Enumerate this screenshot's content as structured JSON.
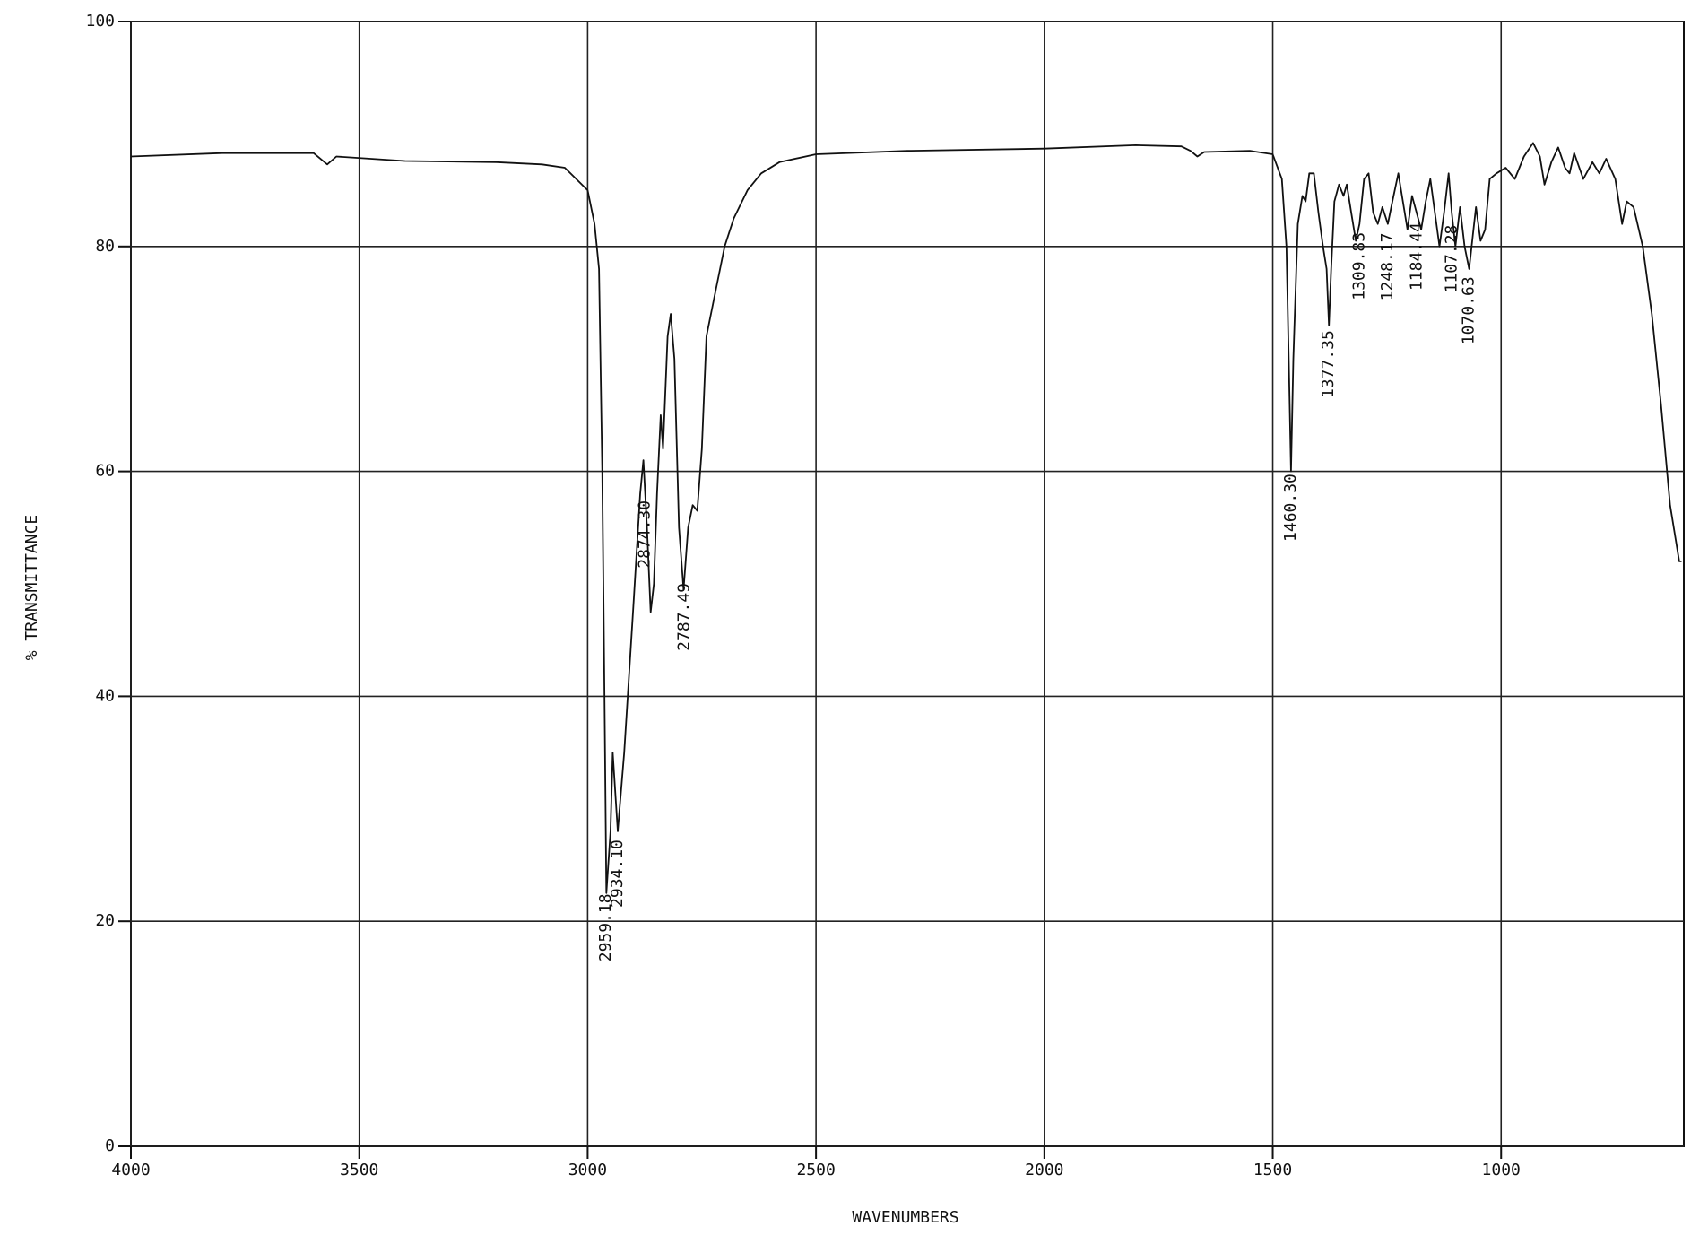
{
  "chart_data": {
    "type": "line",
    "x_label": "WAVENUMBERS",
    "y_label": "% TRANSMITTANCE",
    "xlim": [
      4000,
      600
    ],
    "ylim": [
      0,
      100
    ],
    "xticks": [
      4000,
      3500,
      3000,
      2500,
      2000,
      1500,
      1000
    ],
    "yticks": [
      0,
      20,
      40,
      60,
      80,
      100
    ],
    "grid": true,
    "color": "#111111",
    "x": [
      4000,
      3800,
      3600,
      3570,
      3550,
      3400,
      3200,
      3100,
      3050,
      3000,
      2985,
      2975,
      2968,
      2962,
      2959,
      2950,
      2945,
      2934,
      2920,
      2900,
      2885,
      2878,
      2870,
      2862,
      2855,
      2848,
      2840,
      2835,
      2825,
      2818,
      2810,
      2800,
      2790,
      2780,
      2770,
      2760,
      2750,
      2740,
      2720,
      2700,
      2680,
      2650,
      2620,
      2580,
      2500,
      2300,
      2000,
      1800,
      1700,
      1680,
      1665,
      1650,
      1550,
      1500,
      1480,
      1470,
      1465,
      1460,
      1455,
      1445,
      1435,
      1428,
      1420,
      1410,
      1400,
      1390,
      1382,
      1377,
      1372,
      1365,
      1355,
      1345,
      1338,
      1328,
      1318,
      1310,
      1300,
      1290,
      1280,
      1270,
      1260,
      1248,
      1238,
      1225,
      1215,
      1205,
      1195,
      1185,
      1175,
      1165,
      1155,
      1145,
      1135,
      1125,
      1115,
      1108,
      1100,
      1090,
      1080,
      1070,
      1062,
      1055,
      1045,
      1035,
      1025,
      1010,
      990,
      970,
      950,
      930,
      915,
      905,
      890,
      875,
      860,
      850,
      840,
      820,
      800,
      785,
      770,
      750,
      735,
      725,
      710,
      690,
      670,
      650,
      630,
      610,
      605
    ],
    "values": [
      88,
      88.3,
      88.3,
      87.3,
      88,
      87.6,
      87.5,
      87.3,
      87,
      85,
      82,
      78,
      60,
      35,
      22.5,
      28,
      35,
      28,
      35,
      48,
      58,
      61,
      55,
      47.5,
      50,
      58,
      65,
      62,
      72,
      74,
      70,
      55,
      49.5,
      55,
      57,
      56.5,
      62,
      72,
      76,
      80,
      82.5,
      85,
      86.5,
      87.5,
      88.2,
      88.5,
      88.7,
      89,
      88.9,
      88.5,
      88,
      88.4,
      88.5,
      88.2,
      86,
      80,
      70,
      60,
      70,
      82,
      84.5,
      84,
      86.5,
      86.5,
      83,
      80,
      78,
      73,
      78,
      84,
      85.5,
      84.5,
      85.5,
      83,
      80.5,
      82,
      86,
      86.5,
      83,
      82,
      83.5,
      82,
      84,
      86.5,
      84,
      81.5,
      84.5,
      83,
      81.5,
      84,
      86,
      83,
      80,
      83,
      86.5,
      83,
      80,
      83.5,
      80,
      78,
      81,
      83.5,
      80.5,
      81.5,
      86,
      86.5,
      87,
      86,
      88,
      89.2,
      88,
      85.5,
      87.5,
      88.8,
      87,
      86.5,
      88.3,
      86,
      87.5,
      86.5,
      87.8,
      86,
      82,
      84,
      83.5,
      80,
      74,
      66,
      57,
      52,
      52
    ],
    "peaks": [
      {
        "value": 2959.18,
        "label": "2959.18"
      },
      {
        "value": 2934.1,
        "label": "2934.10"
      },
      {
        "value": 2874.3,
        "label": "2874.30"
      },
      {
        "value": 2787.49,
        "label": "2787.49"
      },
      {
        "value": 1460.3,
        "label": "1460.30"
      },
      {
        "value": 1377.35,
        "label": "1377.35"
      },
      {
        "value": 1309.83,
        "label": "1309.83"
      },
      {
        "value": 1248.17,
        "label": "1248.17"
      },
      {
        "value": 1184.44,
        "label": "1184.44"
      },
      {
        "value": 1107.28,
        "label": "1107.28"
      },
      {
        "value": 1070.63,
        "label": "1070.63"
      }
    ]
  }
}
